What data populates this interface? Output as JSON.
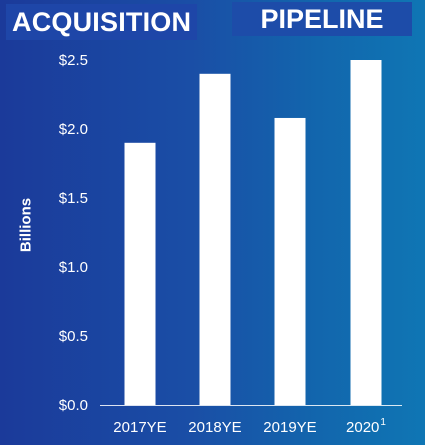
{
  "header": {
    "title_left": "ACQUISITION",
    "title_right": "PIPELINE"
  },
  "colors": {
    "background_left": "#1b3a9a",
    "background_right": "#0f76b4",
    "bar": "#ffffff",
    "text": "#ffffff"
  },
  "chart_data": {
    "type": "bar",
    "title": "ACQUISITION PIPELINE",
    "xlabel": "",
    "ylabel": "Billions",
    "categories": [
      "2017YE",
      "2018YE",
      "2019YE",
      "2020"
    ],
    "category_superscripts": [
      "",
      "",
      "",
      "1"
    ],
    "values": [
      1.9,
      2.4,
      2.08,
      2.5
    ],
    "ylim": [
      0,
      2.5
    ],
    "yticks": [
      0,
      0.5,
      1.0,
      1.5,
      2.0,
      2.5
    ],
    "ytick_labels": [
      "$0.0",
      "$0.5",
      "$1.0",
      "$1.5",
      "$2.0",
      "$2.5"
    ],
    "grid": false,
    "legend": "none"
  }
}
